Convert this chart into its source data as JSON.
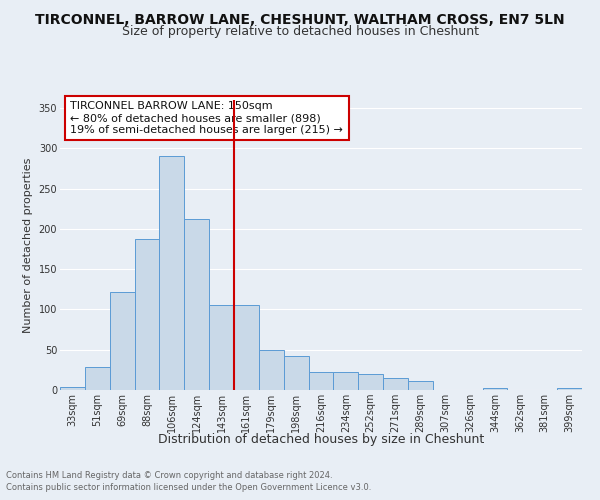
{
  "title": "TIRCONNEL, BARROW LANE, CHESHUNT, WALTHAM CROSS, EN7 5LN",
  "subtitle": "Size of property relative to detached houses in Cheshunt",
  "xlabel": "Distribution of detached houses by size in Cheshunt",
  "ylabel": "Number of detached properties",
  "footer1": "Contains HM Land Registry data © Crown copyright and database right 2024.",
  "footer2": "Contains public sector information licensed under the Open Government Licence v3.0.",
  "categories": [
    "33sqm",
    "51sqm",
    "69sqm",
    "88sqm",
    "106sqm",
    "124sqm",
    "143sqm",
    "161sqm",
    "179sqm",
    "198sqm",
    "216sqm",
    "234sqm",
    "252sqm",
    "271sqm",
    "289sqm",
    "307sqm",
    "326sqm",
    "344sqm",
    "362sqm",
    "381sqm",
    "399sqm"
  ],
  "values": [
    4,
    28,
    122,
    188,
    291,
    212,
    106,
    106,
    50,
    42,
    22,
    22,
    20,
    15,
    11,
    0,
    0,
    3,
    0,
    0,
    3
  ],
  "bar_color": "#c9d9e8",
  "bar_edge_color": "#5b9bd5",
  "property_line_x": 6.5,
  "annotation_text1": "TIRCONNEL BARROW LANE: 150sqm",
  "annotation_text2": "← 80% of detached houses are smaller (898)",
  "annotation_text3": "19% of semi-detached houses are larger (215) →",
  "annotation_box_color": "#cc0000",
  "ylim": [
    0,
    360
  ],
  "yticks": [
    0,
    50,
    100,
    150,
    200,
    250,
    300,
    350
  ],
  "bg_color": "#e8eef5",
  "grid_color": "#ffffff",
  "title_fontsize": 10,
  "subtitle_fontsize": 9,
  "xlabel_fontsize": 9,
  "ylabel_fontsize": 8,
  "tick_fontsize": 7,
  "annotation_fontsize": 8,
  "footer_fontsize": 6
}
